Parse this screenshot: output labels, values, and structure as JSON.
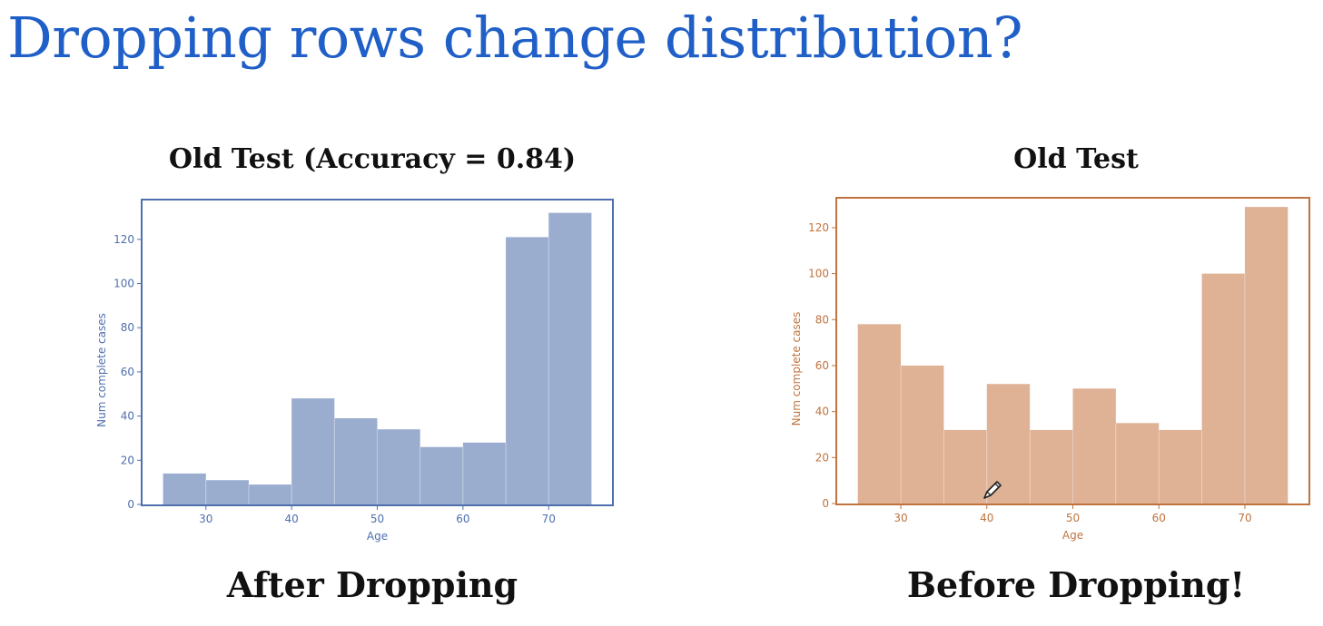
{
  "slide": {
    "title": "Dropping rows change distribution?",
    "title_color": "#1f5fc7"
  },
  "charts": {
    "left": {
      "title": "Old Test  (Accuracy = 0.84)",
      "caption": "After Dropping"
    },
    "right": {
      "title": "Old Test",
      "caption": "Before Dropping!"
    }
  },
  "chart_data": [
    {
      "type": "bar",
      "title": "Old Test  (Accuracy = 0.84)",
      "xlabel": "Age",
      "ylabel": "Num complete cases",
      "bin_edges": [
        25,
        30,
        35,
        40,
        45,
        50,
        55,
        60,
        65,
        70,
        75
      ],
      "values": [
        14,
        11,
        9,
        48,
        39,
        34,
        26,
        28,
        121,
        132
      ],
      "xlim": [
        22.5,
        77.5
      ],
      "ylim": [
        0,
        138
      ],
      "xticks": [
        30,
        40,
        50,
        60,
        70
      ],
      "yticks": [
        0,
        20,
        40,
        60,
        80,
        100,
        120
      ],
      "bar_color": "#9badcf",
      "axis_color": "#4f6fae",
      "caption": "After Dropping"
    },
    {
      "type": "bar",
      "title": "Old Test",
      "xlabel": "Age",
      "ylabel": "Num complete cases",
      "bin_edges": [
        25,
        30,
        35,
        40,
        45,
        50,
        55,
        60,
        65,
        70,
        75
      ],
      "values": [
        78,
        60,
        32,
        52,
        32,
        50,
        35,
        32,
        100,
        129
      ],
      "xlim": [
        22.5,
        77.5
      ],
      "ylim": [
        0,
        133
      ],
      "xticks": [
        30,
        40,
        50,
        60,
        70
      ],
      "yticks": [
        0,
        20,
        40,
        60,
        80,
        100,
        120
      ],
      "bar_color": "#dfb195",
      "axis_color": "#c0733f",
      "caption": "Before Dropping!"
    }
  ]
}
